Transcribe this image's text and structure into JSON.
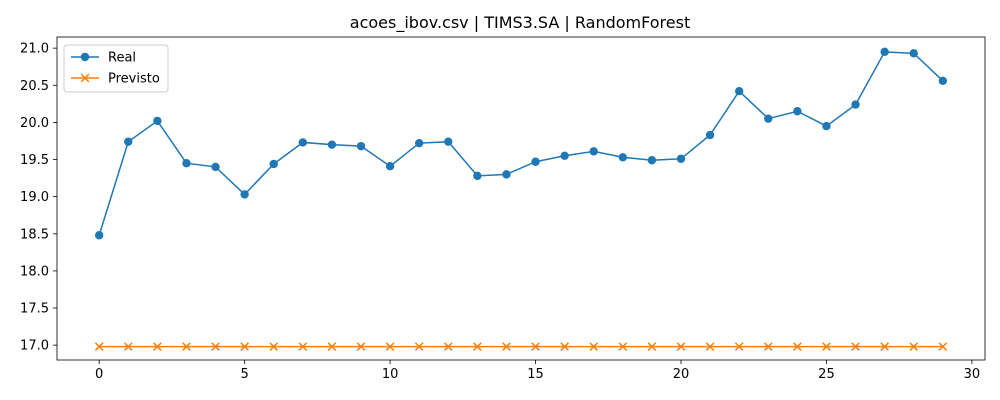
{
  "chart_data": {
    "type": "line",
    "title": "acoes_ibov.csv | TIMS3.SA | RandomForest",
    "xlabel": "",
    "ylabel": "",
    "xlim": [
      -1.45,
      30.45
    ],
    "ylim": [
      16.8,
      21.15
    ],
    "x_ticks": [
      0,
      5,
      10,
      15,
      20,
      25,
      30
    ],
    "y_ticks": [
      17.0,
      17.5,
      18.0,
      18.5,
      19.0,
      19.5,
      20.0,
      20.5,
      21.0
    ],
    "grid": false,
    "legend_position": "top-left",
    "x": [
      0,
      1,
      2,
      3,
      4,
      5,
      6,
      7,
      8,
      9,
      10,
      11,
      12,
      13,
      14,
      15,
      16,
      17,
      18,
      19,
      20,
      21,
      22,
      23,
      24,
      25,
      26,
      27,
      28,
      29
    ],
    "series": [
      {
        "name": "Real",
        "color": "#1f77b4",
        "marker": "circle",
        "values": [
          18.48,
          19.74,
          20.02,
          19.45,
          19.4,
          19.03,
          19.44,
          19.73,
          19.7,
          19.68,
          19.41,
          19.72,
          19.74,
          19.28,
          19.3,
          19.47,
          19.55,
          19.61,
          19.53,
          19.49,
          19.51,
          19.83,
          20.42,
          20.05,
          20.15,
          19.95,
          20.24,
          20.95,
          20.93,
          20.56
        ]
      },
      {
        "name": "Previsto",
        "color": "#ff7f0e",
        "marker": "x",
        "values": [
          16.98,
          16.98,
          16.98,
          16.98,
          16.98,
          16.98,
          16.98,
          16.98,
          16.98,
          16.98,
          16.98,
          16.98,
          16.98,
          16.98,
          16.98,
          16.98,
          16.98,
          16.98,
          16.98,
          16.98,
          16.98,
          16.98,
          16.98,
          16.98,
          16.98,
          16.98,
          16.98,
          16.98,
          16.98,
          16.98
        ]
      }
    ]
  }
}
